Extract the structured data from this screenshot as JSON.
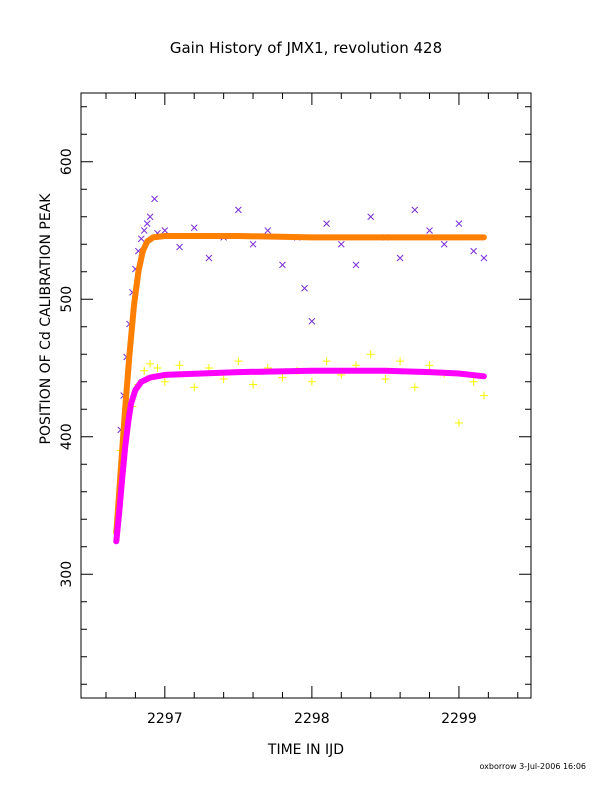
{
  "chart_data": {
    "type": "scatter",
    "title": "Gain History of JMX1, revolution 428",
    "xlabel": "TIME IN IJD",
    "ylabel": "POSITION OF Cd CALIBRATION PEAK",
    "footer": "oxborrow  3-Jul-2006 16:06",
    "xlim": [
      2296.43,
      2299.49
    ],
    "ylim": [
      210,
      650
    ],
    "x_ticks": [
      2297,
      2298,
      2299
    ],
    "x_tick_labels": [
      "2297",
      "2298",
      "2299"
    ],
    "y_ticks": [
      300,
      400,
      500,
      600
    ],
    "y_tick_labels": [
      "300",
      "400",
      "500",
      "600"
    ],
    "grid": false,
    "legend": "none",
    "series": [
      {
        "marker": "x",
        "color": "#7b2fd6",
        "x": [
          2296.7,
          2296.72,
          2296.74,
          2296.76,
          2296.78,
          2296.8,
          2296.82,
          2296.84,
          2296.86,
          2296.88,
          2296.9,
          2296.93,
          2296.95,
          2297.0,
          2297.1,
          2297.2,
          2297.3,
          2297.4,
          2297.5,
          2297.6,
          2297.7,
          2297.8,
          2297.9,
          2297.95,
          2298.0,
          2298.1,
          2298.2,
          2298.3,
          2298.4,
          2298.5,
          2298.6,
          2298.7,
          2298.8,
          2298.9,
          2299.0,
          2299.1,
          2299.17
        ],
        "y": [
          405,
          430,
          458,
          482,
          505,
          522,
          535,
          544,
          550,
          555,
          560,
          573,
          548,
          550,
          538,
          552,
          530,
          545,
          565,
          540,
          550,
          525,
          545,
          508,
          484,
          555,
          540,
          525,
          560,
          545,
          530,
          565,
          550,
          540,
          555,
          535,
          530
        ]
      },
      {
        "marker": "+",
        "color": "#f7f700",
        "x": [
          2296.7,
          2296.74,
          2296.78,
          2296.82,
          2296.86,
          2296.9,
          2296.95,
          2297.0,
          2297.1,
          2297.2,
          2297.3,
          2297.4,
          2297.5,
          2297.6,
          2297.7,
          2297.8,
          2297.9,
          2298.0,
          2298.1,
          2298.2,
          2298.3,
          2298.4,
          2298.5,
          2298.6,
          2298.7,
          2298.8,
          2298.9,
          2299.0,
          2299.1,
          2299.17
        ],
        "y": [
          390,
          405,
          422,
          438,
          448,
          453,
          450,
          440,
          452,
          436,
          450,
          442,
          455,
          438,
          450,
          443,
          448,
          440,
          455,
          445,
          452,
          460,
          442,
          455,
          436,
          452,
          446,
          410,
          440,
          430
        ]
      },
      {
        "marker": "curve",
        "color": "#ff7f00",
        "x": [
          2296.67,
          2296.7,
          2296.73,
          2296.76,
          2296.79,
          2296.82,
          2296.85,
          2296.88,
          2296.92,
          2297.0,
          2297.5,
          2298.0,
          2298.5,
          2299.0,
          2299.17
        ],
        "y": [
          330,
          375,
          420,
          460,
          495,
          520,
          535,
          542,
          545,
          546,
          546,
          545,
          545,
          545,
          545
        ]
      },
      {
        "marker": "curve",
        "color": "#ff00ff",
        "x": [
          2296.67,
          2296.69,
          2296.71,
          2296.73,
          2296.75,
          2296.77,
          2296.8,
          2296.84,
          2296.9,
          2297.0,
          2297.5,
          2298.0,
          2298.5,
          2298.8,
          2299.0,
          2299.17
        ],
        "y": [
          324,
          345,
          370,
          392,
          410,
          424,
          434,
          440,
          443,
          445,
          447,
          448,
          448,
          447,
          446,
          444
        ]
      }
    ]
  }
}
